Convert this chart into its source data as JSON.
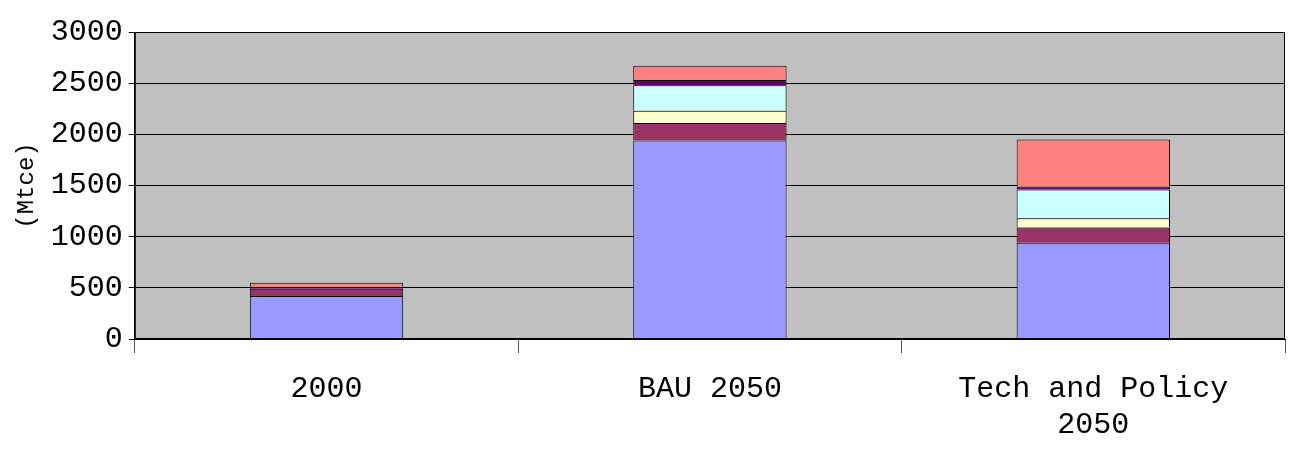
{
  "chart_data": {
    "type": "bar",
    "stacked": true,
    "ylabel": "(Mtce)",
    "categories": [
      "2000",
      "BAU 2050",
      "Tech and Policy 2050"
    ],
    "series": [
      {
        "color": "#9999ff",
        "values": [
          420,
          1940,
          940
        ]
      },
      {
        "color": "#993366",
        "values": [
          70,
          170,
          150
        ]
      },
      {
        "color": "#ffffcc",
        "values": [
          null,
          120,
          90
        ]
      },
      {
        "color": "#ccffff",
        "values": [
          null,
          250,
          280
        ]
      },
      {
        "color": "#660066",
        "values": [
          20,
          50,
          30
        ]
      },
      {
        "color": "#ff8080",
        "values": [
          40,
          140,
          460
        ]
      }
    ],
    "ylim": [
      0,
      3000
    ],
    "yticks": [
      0,
      500,
      1000,
      1500,
      2000,
      2500,
      3000
    ],
    "grid": "y",
    "legend": false
  }
}
